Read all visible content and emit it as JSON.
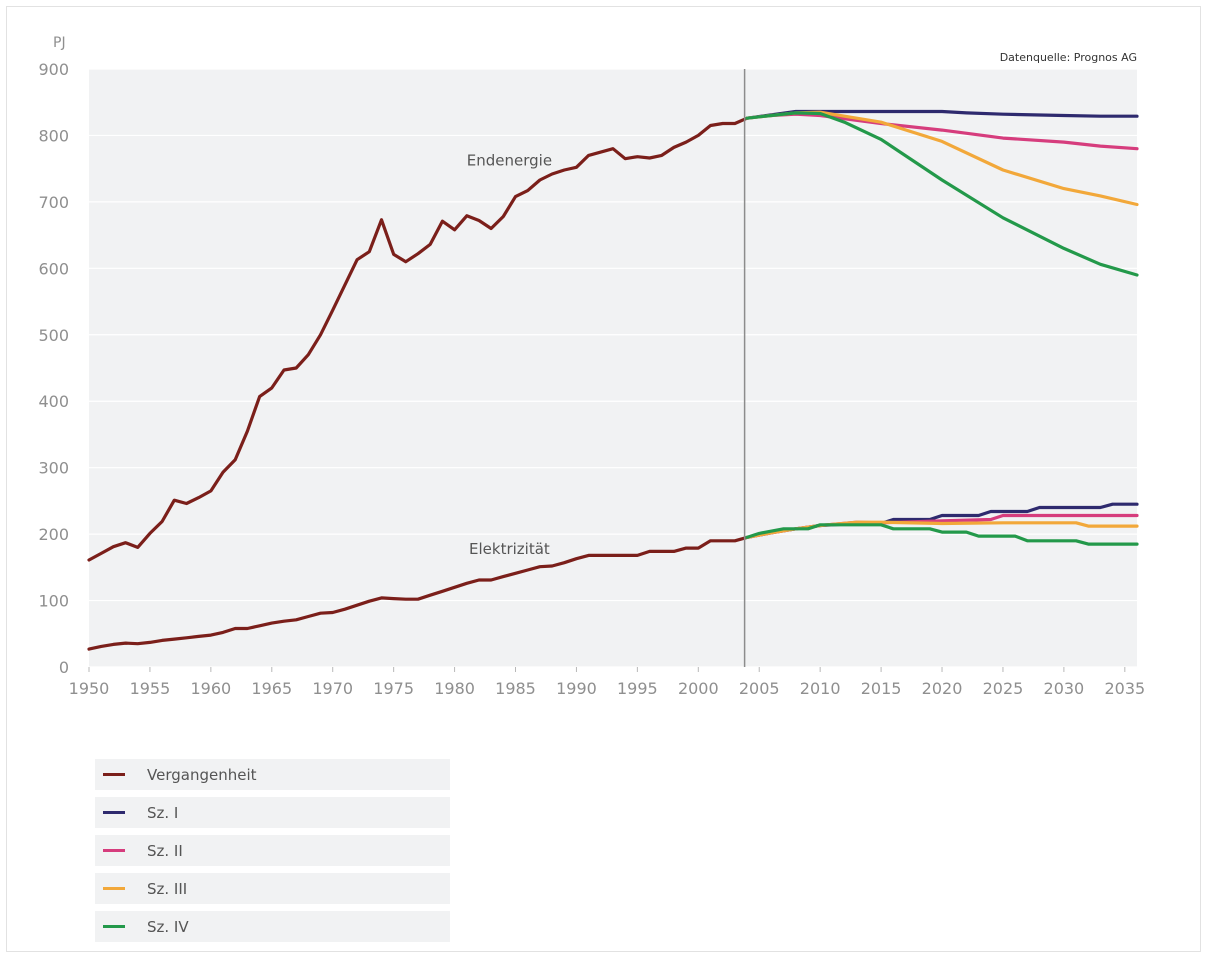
{
  "chart_data": {
    "type": "line",
    "unit_label": "PJ",
    "source_note": "Datenquelle: Prognos AG",
    "xlim": [
      1950,
      2036
    ],
    "ylim": [
      0,
      900
    ],
    "x_ticks": [
      1950,
      1955,
      1960,
      1965,
      1970,
      1975,
      1980,
      1985,
      1990,
      1995,
      2000,
      2005,
      2010,
      2015,
      2020,
      2025,
      2030,
      2035
    ],
    "y_ticks": [
      0,
      100,
      200,
      300,
      400,
      500,
      600,
      700,
      800,
      900
    ],
    "grid": true,
    "divider_x": 2003.8,
    "annotations": [
      {
        "text": "Endenergie",
        "x": 1984.5,
        "y": 755
      },
      {
        "text": "Elektrizität",
        "x": 1984.5,
        "y": 170
      }
    ],
    "legend_position": "bottom-left",
    "legend": [
      {
        "label": "Vergangenheit",
        "color": "#7b1f1a"
      },
      {
        "label": "Sz. I",
        "color": "#2e2a6e"
      },
      {
        "label": "Sz. II",
        "color": "#d63d7d"
      },
      {
        "label": "Sz. III",
        "color": "#f2a83a"
      },
      {
        "label": "Sz. IV",
        "color": "#23994a"
      }
    ],
    "series": [
      {
        "group": "Endenergie",
        "legend_index": 0,
        "x": [
          1950,
          1951,
          1952,
          1953,
          1954,
          1955,
          1956,
          1957,
          1958,
          1959,
          1960,
          1961,
          1962,
          1963,
          1964,
          1965,
          1966,
          1967,
          1968,
          1969,
          1970,
          1971,
          1972,
          1973,
          1974,
          1975,
          1976,
          1977,
          1978,
          1979,
          1980,
          1981,
          1982,
          1983,
          1984,
          1985,
          1986,
          1987,
          1988,
          1989,
          1990,
          1991,
          1992,
          1993,
          1994,
          1995,
          1996,
          1997,
          1998,
          1999,
          2000,
          2001,
          2002,
          2003,
          2004
        ],
        "values": [
          161,
          171,
          181,
          187,
          180,
          201,
          219,
          251,
          246,
          255,
          265,
          293,
          312,
          355,
          407,
          420,
          447,
          450,
          470,
          500,
          537,
          575,
          613,
          625,
          673,
          621,
          610,
          622,
          636,
          671,
          658,
          679,
          672,
          660,
          678,
          708,
          717,
          733,
          742,
          748,
          752,
          770,
          775,
          780,
          765,
          768,
          766,
          770,
          782,
          790,
          800,
          815,
          818,
          818,
          826
        ]
      },
      {
        "group": "Elektrizität",
        "legend_index": 0,
        "x": [
          1950,
          1951,
          1952,
          1953,
          1954,
          1955,
          1956,
          1957,
          1958,
          1959,
          1960,
          1961,
          1962,
          1963,
          1964,
          1965,
          1966,
          1967,
          1968,
          1969,
          1970,
          1971,
          1972,
          1973,
          1974,
          1975,
          1976,
          1977,
          1978,
          1979,
          1980,
          1981,
          1982,
          1983,
          1984,
          1985,
          1986,
          1987,
          1988,
          1989,
          1990,
          1991,
          1992,
          1993,
          1994,
          1995,
          1996,
          1997,
          1998,
          1999,
          2000,
          2001,
          2002,
          2003,
          2004
        ],
        "values": [
          27,
          31,
          34,
          36,
          35,
          37,
          40,
          42,
          44,
          46,
          48,
          52,
          58,
          58,
          62,
          66,
          69,
          71,
          76,
          81,
          82,
          87,
          93,
          99,
          104,
          103,
          102,
          102,
          108,
          114,
          120,
          126,
          131,
          131,
          136,
          141,
          146,
          151,
          152,
          157,
          163,
          168,
          168,
          168,
          168,
          168,
          174,
          174,
          174,
          179,
          179,
          190,
          190,
          190,
          195
        ]
      },
      {
        "group": "Endenergie",
        "legend_index": 1,
        "x": [
          2004,
          2006,
          2008,
          2010,
          2015,
          2020,
          2022,
          2025,
          2030,
          2033,
          2036
        ],
        "values": [
          826,
          831,
          836,
          836,
          836,
          836,
          834,
          832,
          830,
          829,
          829
        ]
      },
      {
        "group": "Endenergie",
        "legend_index": 2,
        "x": [
          2004,
          2006,
          2008,
          2010,
          2015,
          2020,
          2025,
          2030,
          2033,
          2036
        ],
        "values": [
          826,
          830,
          832,
          830,
          818,
          808,
          796,
          790,
          784,
          780
        ]
      },
      {
        "group": "Endenergie",
        "legend_index": 3,
        "x": [
          2004,
          2006,
          2008,
          2010,
          2015,
          2020,
          2025,
          2030,
          2033,
          2036
        ],
        "values": [
          826,
          830,
          834,
          835,
          820,
          791,
          748,
          720,
          709,
          696
        ]
      },
      {
        "group": "Endenergie",
        "legend_index": 4,
        "x": [
          2004,
          2006,
          2008,
          2010,
          2012,
          2015,
          2020,
          2025,
          2030,
          2033,
          2036
        ],
        "values": [
          826,
          830,
          834,
          833,
          820,
          794,
          733,
          676,
          630,
          606,
          590
        ]
      },
      {
        "group": "Elektrizität",
        "legend_index": 1,
        "x": [
          2004,
          2006,
          2008,
          2010,
          2012,
          2015,
          2016,
          2019,
          2020,
          2023,
          2024,
          2027,
          2028,
          2033,
          2034,
          2036
        ],
        "values": [
          195,
          202,
          208,
          213,
          215,
          216,
          222,
          222,
          228,
          228,
          234,
          234,
          240,
          240,
          245,
          245
        ]
      },
      {
        "group": "Elektrizität",
        "legend_index": 2,
        "x": [
          2004,
          2006,
          2008,
          2010,
          2013,
          2015,
          2020,
          2024,
          2025,
          2036
        ],
        "values": [
          195,
          202,
          208,
          213,
          218,
          217,
          220,
          222,
          228,
          228
        ]
      },
      {
        "group": "Elektrizität",
        "legend_index": 3,
        "x": [
          2004,
          2006,
          2008,
          2010,
          2013,
          2015,
          2020,
          2025,
          2031,
          2032,
          2036
        ],
        "values": [
          195,
          202,
          208,
          213,
          218,
          218,
          216,
          217,
          217,
          212,
          212
        ]
      },
      {
        "group": "Elektrizität",
        "legend_index": 4,
        "x": [
          2004,
          2005,
          2007,
          2009,
          2010,
          2012,
          2015,
          2016,
          2019,
          2020,
          2022,
          2023,
          2026,
          2027,
          2031,
          2032,
          2036
        ],
        "values": [
          195,
          201,
          208,
          208,
          214,
          214,
          214,
          208,
          208,
          203,
          203,
          197,
          197,
          190,
          190,
          185,
          185
        ]
      }
    ]
  }
}
